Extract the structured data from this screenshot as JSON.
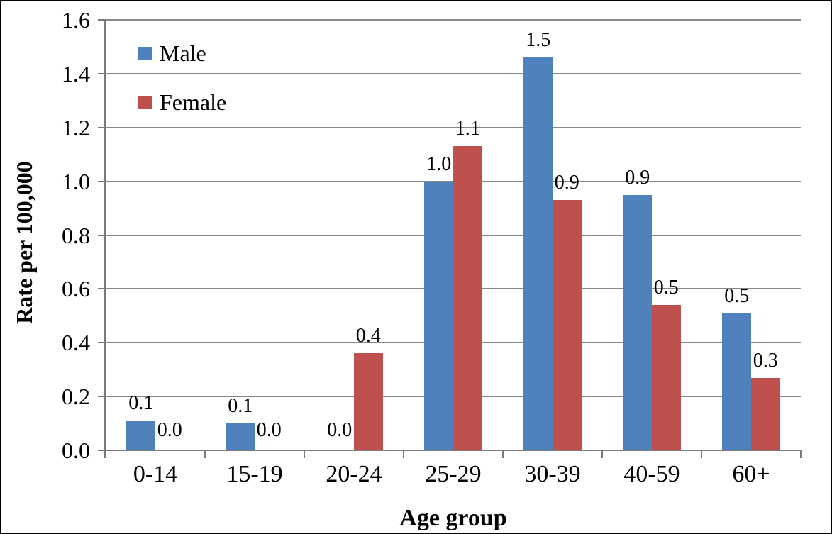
{
  "chart_data": {
    "type": "bar",
    "categories": [
      "0-14",
      "15-19",
      "20-24",
      "25-29",
      "30-39",
      "40-59",
      "60+"
    ],
    "series": [
      {
        "name": "Male",
        "color": "#4F81BD",
        "values": [
          0.11,
          0.1,
          0,
          1.0,
          1.46,
          0.95,
          0.51
        ],
        "bar_labels": [
          "0.1",
          "0.1",
          "0.0",
          "1.0",
          "1.5",
          "0.9",
          "0.5"
        ]
      },
      {
        "name": "Female",
        "color": "#C0504D",
        "values": [
          0,
          0,
          0.36,
          1.13,
          0.93,
          0.54,
          0.27
        ],
        "bar_labels": [
          "0.0",
          "0.0",
          "0.4",
          "1.1",
          "0.9",
          "0.5",
          "0.3"
        ]
      }
    ],
    "xlabel": "Age group",
    "ylabel": "Rate per 100,000",
    "ylim": [
      0,
      1.6
    ],
    "ytick_step": 0.2,
    "yticks": [
      "0.0",
      "0.2",
      "0.4",
      "0.6",
      "0.8",
      "1.0",
      "1.2",
      "1.4",
      "1.6"
    ],
    "grid": true,
    "legend": {
      "position": "top-left-inside",
      "entries": [
        "Male",
        "Female"
      ]
    },
    "colors": {
      "male_bar": "#4F81BD",
      "female_bar": "#C0504D",
      "gridline": "#878787",
      "axis_line": "#7a7a7a",
      "text": "#000000",
      "background": "#FFFFFF",
      "border": "#000000"
    }
  }
}
